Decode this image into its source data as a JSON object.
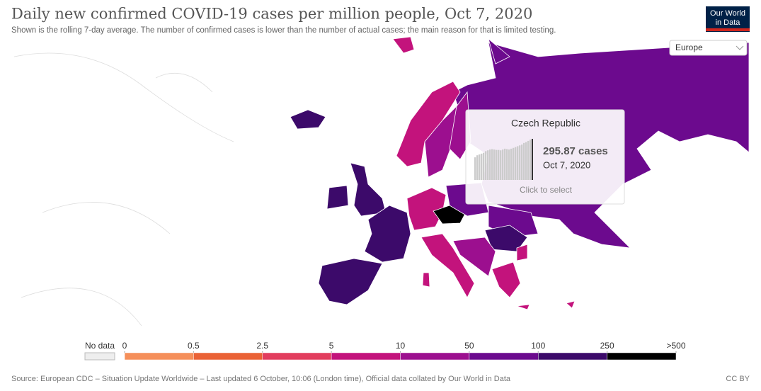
{
  "header": {
    "title": "Daily new confirmed COVID-19 cases per million people, Oct 7, 2020",
    "subtitle": "Shown is the rolling 7-day average. The number of confirmed cases is lower than the number of actual cases; the main reason for that is limited testing.",
    "logo": [
      "Our World",
      "in Data"
    ]
  },
  "region_select": "Europe",
  "tooltip": {
    "country": "Czech Republic",
    "value_label": "295.87 cases",
    "date": "Oct 7, 2020",
    "action": "Click to select",
    "history": [
      55,
      60,
      62,
      64,
      66,
      70,
      72,
      74,
      75,
      74,
      73,
      73,
      72,
      74,
      76,
      75,
      74,
      76,
      78,
      80,
      82,
      84,
      86,
      90,
      92,
      95,
      98,
      100
    ]
  },
  "legend": {
    "no_data": "No data",
    "ticks": [
      0,
      0.5,
      2.5,
      5,
      10,
      50,
      100,
      250,
      {
        "value": 500,
        "label": ">500"
      }
    ],
    "colors": [
      "#f58f5a",
      "#ea6236",
      "#e23d5e",
      "#c3137c",
      "#9c0f8f",
      "#6b0a8e",
      "#3c0a6a",
      "#000000"
    ]
  },
  "footer": {
    "source": "Source: European CDC – Situation Update Worldwide – Last updated 6 October, 10:06 (London time), Official data collated by Our World in Data",
    "license": "CC BY"
  }
}
